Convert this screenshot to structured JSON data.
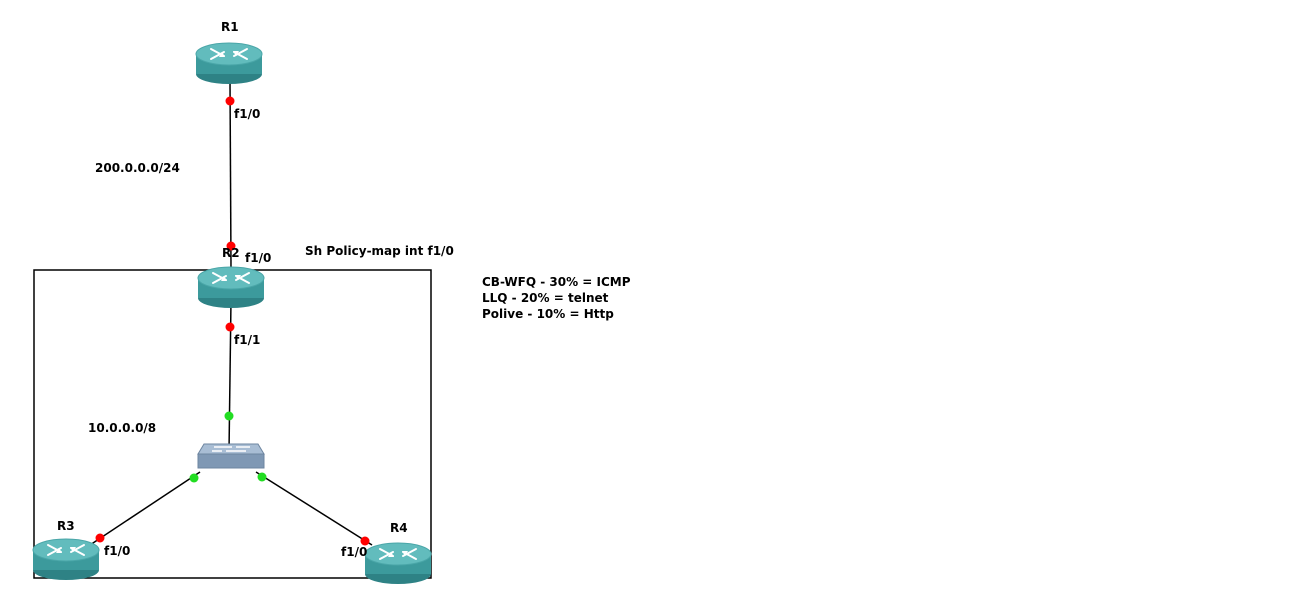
{
  "diagram": {
    "colors": {
      "link": "#000000",
      "port_down": "#ff0000",
      "port_up": "#22dd22",
      "router_body": "#3c9a9c",
      "router_top": "#5db7b8",
      "switch_body": "#8aa3bf"
    },
    "devices": {
      "r1": {
        "label": "R1",
        "icon": "router-icon"
      },
      "r2": {
        "label": "R2",
        "icon": "router-icon"
      },
      "r3": {
        "label": "R3",
        "icon": "router-icon"
      },
      "r4": {
        "label": "R4",
        "icon": "router-icon"
      },
      "sw": {
        "label": "",
        "icon": "switch-icon"
      }
    },
    "ports": {
      "r1_f10": "f1/0",
      "r2_f10": "f1/0",
      "r2_f11": "f1/1",
      "r3_f10": "f1/0",
      "r4_f10": "f1/0"
    },
    "networks": {
      "wan": "200.0.0.0/24",
      "lan": "10.0.0.0/8"
    },
    "notes": {
      "command": "Sh Policy-map int f1/0",
      "qos_lines": [
        "CB-WFQ - 30% = ICMP",
        "LLQ - 20% = telnet",
        "Polive - 10% = Http"
      ]
    }
  }
}
